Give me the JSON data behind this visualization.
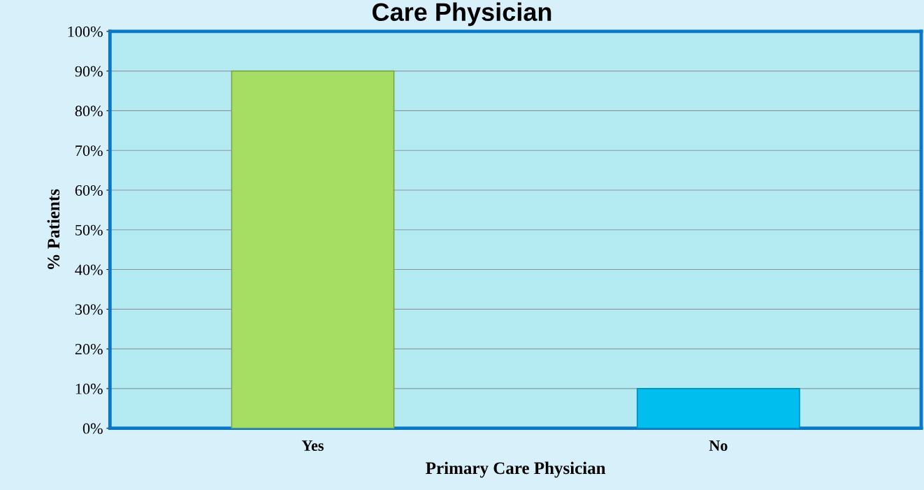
{
  "chart_data": {
    "type": "bar",
    "title": "Care Physician",
    "xlabel": "Primary Care Physician",
    "ylabel": "% Patients",
    "categories": [
      "Yes",
      "No"
    ],
    "values": [
      90,
      10
    ],
    "colors": [
      "#a6de64",
      "#00bfef"
    ],
    "ylim": [
      0,
      100
    ],
    "yticks": [
      {
        "value": 0,
        "label": "0%"
      },
      {
        "value": 10,
        "label": "10%"
      },
      {
        "value": 20,
        "label": "20%"
      },
      {
        "value": 30,
        "label": "30%"
      },
      {
        "value": 40,
        "label": "40%"
      },
      {
        "value": 50,
        "label": "50%"
      },
      {
        "value": 60,
        "label": "60%"
      },
      {
        "value": 70,
        "label": "70%"
      },
      {
        "value": 80,
        "label": "80%"
      },
      {
        "value": 90,
        "label": "90%"
      },
      {
        "value": 100,
        "label": "100%"
      }
    ],
    "grid": "y"
  }
}
